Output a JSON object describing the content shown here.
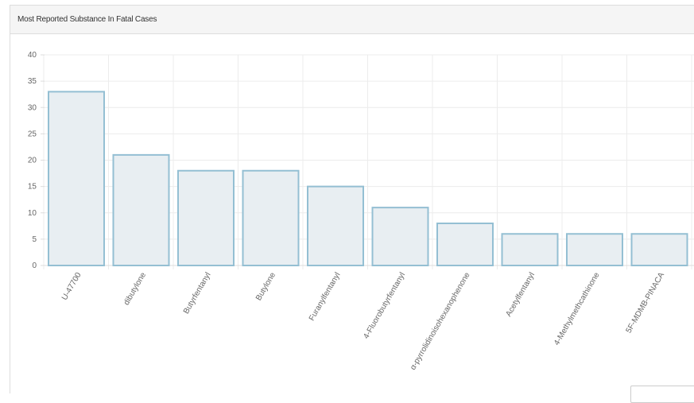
{
  "panel": {
    "title": "Most Reported Substance In Fatal Cases"
  },
  "chart_data": {
    "type": "bar",
    "title": "",
    "xlabel": "",
    "ylabel": "",
    "ylim": [
      0,
      40
    ],
    "yticks": [
      0,
      5,
      10,
      15,
      20,
      25,
      30,
      35,
      40
    ],
    "grid": true,
    "legend": "none",
    "bar_fill": "#e8eef2",
    "bar_stroke": "#94bfd3",
    "categories": [
      "U-47700",
      "dibutylone",
      "Butyrfentanyl",
      "Butylone",
      "Furanylfentanyl",
      "4-Fluorobutyrfentanyl",
      "α-pyrrolidinoisohexanophenone",
      "Acetylfentanyl",
      "4-Methylmethcathinone",
      "5F-MDMB-PINACA"
    ],
    "values": [
      33,
      21,
      18,
      18,
      15,
      11,
      8,
      6,
      6,
      6
    ]
  }
}
